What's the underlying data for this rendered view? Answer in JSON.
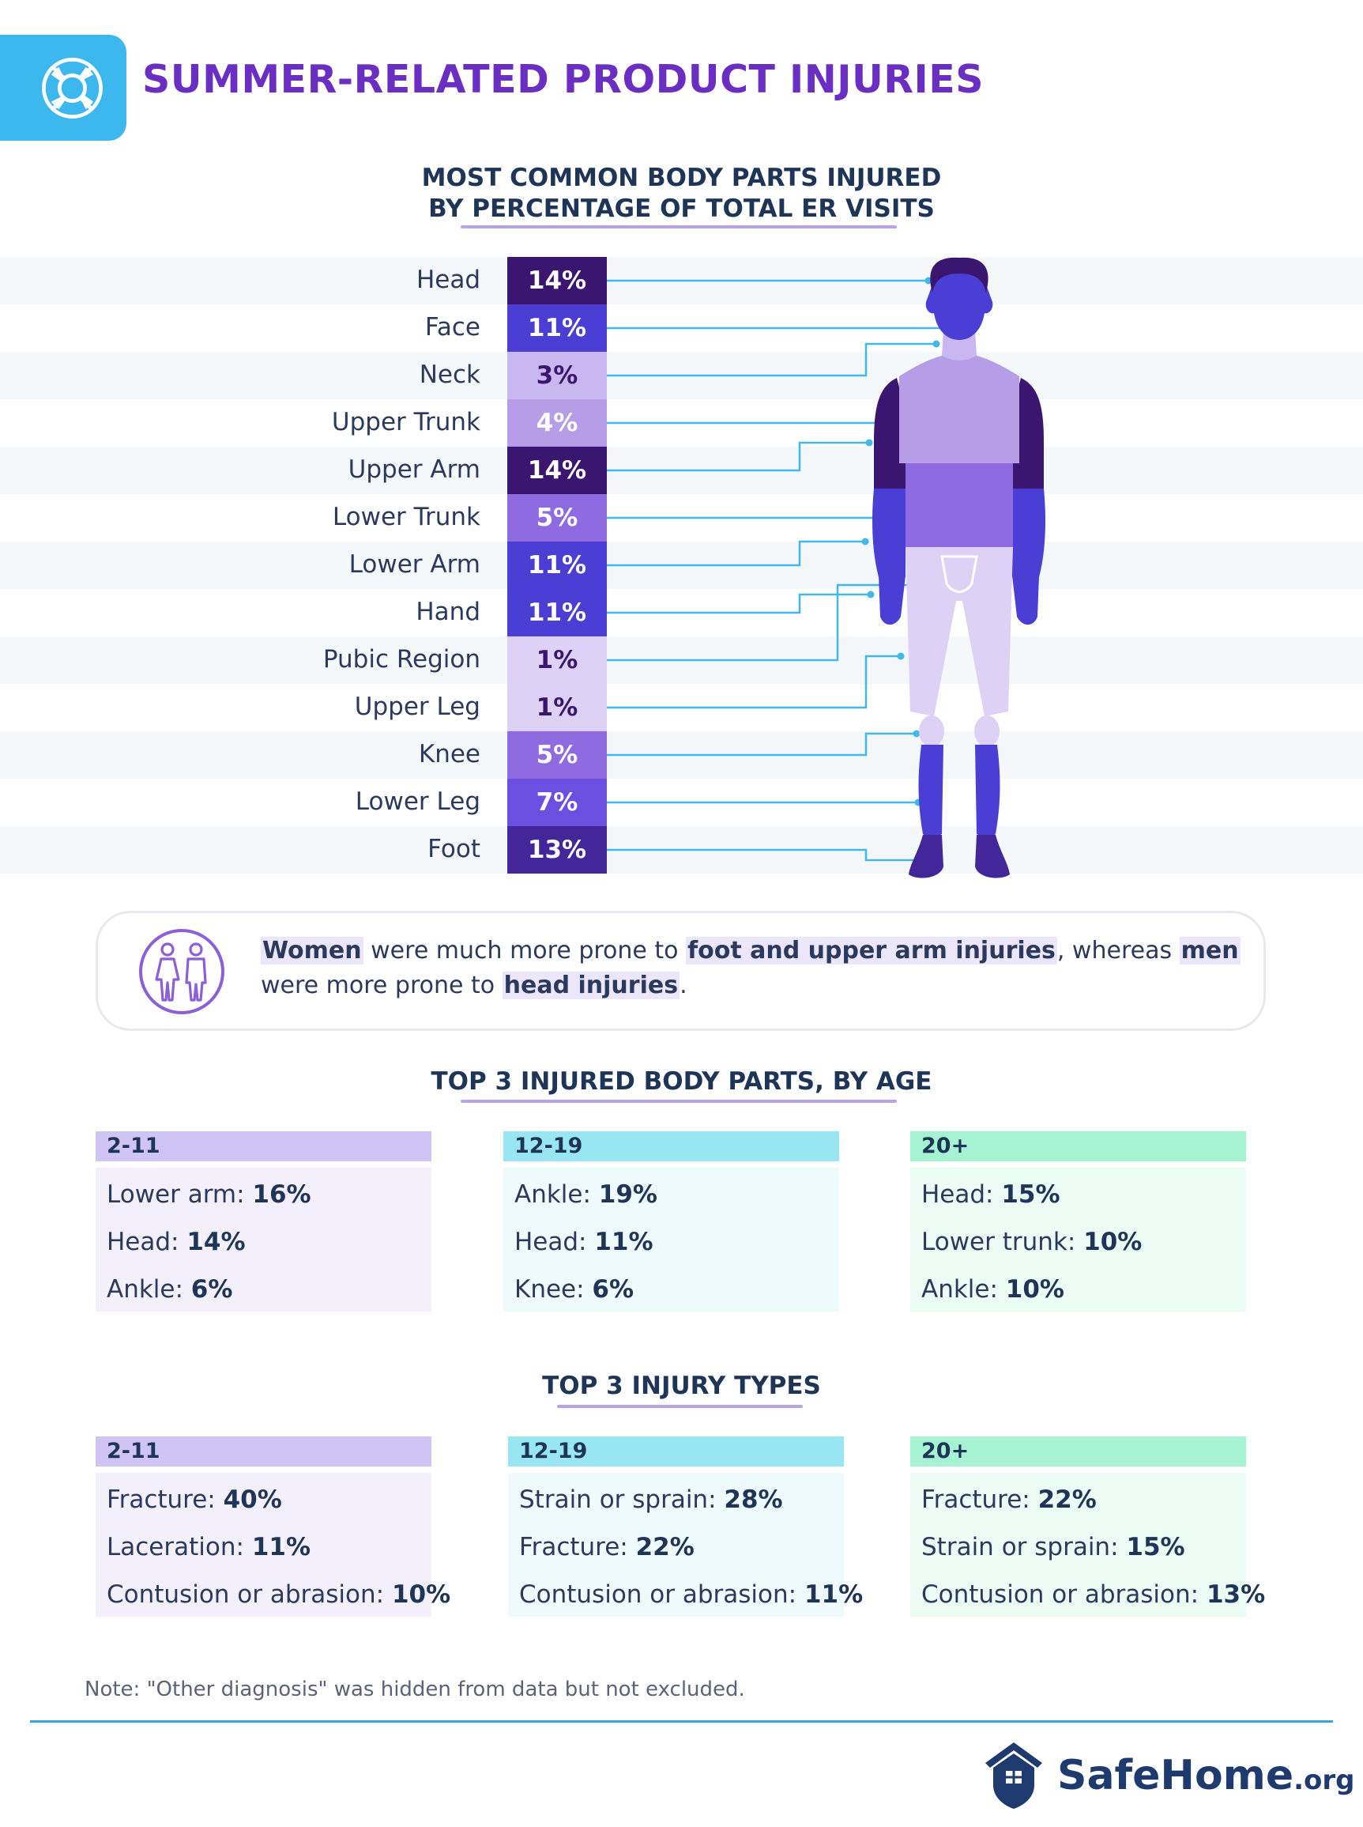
{
  "header": {
    "title": "SUMMER-RELATED PRODUCT INJURIES",
    "icon": "life-ring-icon"
  },
  "chart_data": {
    "type": "bar",
    "title_line1": "MOST COMMON BODY PARTS INJURED",
    "title_line2": "BY PERCENTAGE OF TOTAL ER VISITS",
    "categories": [
      "Head",
      "Face",
      "Neck",
      "Upper Trunk",
      "Upper Arm",
      "Lower Trunk",
      "Lower Arm",
      "Hand",
      "Pubic Region",
      "Upper Leg",
      "Knee",
      "Lower Leg",
      "Foot"
    ],
    "values": [
      14,
      11,
      3,
      4,
      14,
      5,
      11,
      11,
      1,
      1,
      5,
      7,
      13
    ],
    "value_labels": [
      "14%",
      "11%",
      "3%",
      "4%",
      "14%",
      "5%",
      "11%",
      "11%",
      "1%",
      "1%",
      "5%",
      "7%",
      "13%"
    ],
    "unit": "%",
    "colors": [
      "#3b1670",
      "#4a3ed4",
      "#c9b8f0",
      "#b59de8",
      "#3b1670",
      "#8e6be0",
      "#4a3ed4",
      "#4a3ed4",
      "#ddd2f5",
      "#ddd2f5",
      "#8e6be0",
      "#6a4fe0",
      "#43279a"
    ]
  },
  "callout": {
    "icon": "man-woman-icon",
    "w1": "Women",
    "t1": " were much more prone to ",
    "w2": "foot and upper arm injuries",
    "t2": ", whereas ",
    "w3": "men",
    "t3": " were more prone to ",
    "w4": "head injuries",
    "t4": "."
  },
  "age_section": {
    "title": "TOP 3 INJURED BODY PARTS, BY AGE",
    "groups": [
      {
        "age": "2-11",
        "items": [
          {
            "label": "Lower arm: ",
            "value": "16%"
          },
          {
            "label": "Head: ",
            "value": "14%"
          },
          {
            "label": "Ankle: ",
            "value": "6%"
          }
        ]
      },
      {
        "age": "12-19",
        "items": [
          {
            "label": "Ankle: ",
            "value": "19%"
          },
          {
            "label": "Head: ",
            "value": "11%"
          },
          {
            "label": "Knee: ",
            "value": "6%"
          }
        ]
      },
      {
        "age": "20+",
        "items": [
          {
            "label": "Head: ",
            "value": "15%"
          },
          {
            "label": "Lower trunk: ",
            "value": "10%"
          },
          {
            "label": "Ankle: ",
            "value": "10%"
          }
        ]
      }
    ]
  },
  "type_section": {
    "title": "TOP 3 INJURY TYPES",
    "groups": [
      {
        "age": "2-11",
        "items": [
          {
            "label": "Fracture: ",
            "value": "40%"
          },
          {
            "label": "Laceration: ",
            "value": "11%"
          },
          {
            "label": "Contusion or abrasion: ",
            "value": "10%"
          }
        ]
      },
      {
        "age": "12-19",
        "items": [
          {
            "label": "Strain or sprain: ",
            "value": "28%"
          },
          {
            "label": "Fracture: ",
            "value": "22%"
          },
          {
            "label": "Contusion or abrasion: ",
            "value": "11%"
          }
        ]
      },
      {
        "age": "20+",
        "items": [
          {
            "label": "Fracture: ",
            "value": "22%"
          },
          {
            "label": "Strain or sprain: ",
            "value": "15%"
          },
          {
            "label": "Contusion or abrasion: ",
            "value": "13%"
          }
        ]
      }
    ]
  },
  "group_colors": {
    "head": [
      "#cfc4f4",
      "#97e6f2",
      "#a6f3d3"
    ],
    "body": [
      "#f3f0fc",
      "#eefafc",
      "#eafcf4"
    ]
  },
  "note": "Note: \"Other diagnosis\" was hidden from data but not excluded.",
  "brand": {
    "name": "SafeHome",
    "suffix": ".org",
    "icon": "house-shield-icon"
  }
}
